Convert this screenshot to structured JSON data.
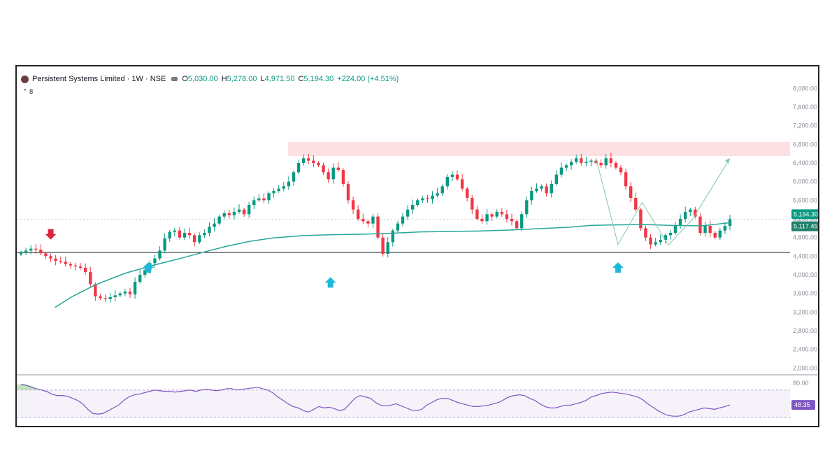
{
  "header": {
    "symbol": "Persistent Systems Limited · 1W · NSE",
    "open_key": "O",
    "open": "5,030.00",
    "high_key": "H",
    "high": "5,278.00",
    "low_key": "L",
    "low": "4,971.50",
    "close_key": "C",
    "close": "5,194.30",
    "change": "+224.00 (+4.51%)",
    "sub_label": "8"
  },
  "colors": {
    "up": "#089981",
    "down": "#f23645",
    "ma": "#26a69a",
    "rsi": "#7e57c2",
    "zone": "#fcd8dc",
    "arrow_up": "#1fb8d9",
    "arrow_down": "#d7263d"
  },
  "chart_data": {
    "type": "candlestick",
    "title": "Persistent Systems Limited · 1W · NSE",
    "y_ticks": [
      "8,000.00",
      "7,600.00",
      "7,200.00",
      "6,800.00",
      "6,400.00",
      "6,000.00",
      "5,600.00",
      "5,200.00",
      "4,800.00",
      "4,400.00",
      "4,000.00",
      "3,600.00",
      "3,200.00",
      "2,800.00",
      "2,400.00",
      "2,000.00"
    ],
    "ylim": [
      1900,
      8200
    ],
    "last_price_label": "5,194.30",
    "ma_value_label": "5,117.45",
    "support_level": 4480,
    "resistance_zone": [
      6550,
      6850
    ],
    "closes": [
      4480,
      4520,
      4560,
      4540,
      4460,
      4400,
      4350,
      4300,
      4280,
      4230,
      4200,
      4180,
      4150,
      4060,
      3800,
      3540,
      3500,
      3480,
      3520,
      3560,
      3600,
      3640,
      3580,
      3850,
      4000,
      4100,
      4250,
      4350,
      4520,
      4780,
      4920,
      4950,
      4800,
      4900,
      4850,
      4700,
      4850,
      4900,
      5030,
      5100,
      5250,
      5320,
      5280,
      5350,
      5400,
      5300,
      5500,
      5600,
      5640,
      5600,
      5750,
      5800,
      5850,
      5900,
      6000,
      6200,
      6400,
      6500,
      6450,
      6400,
      6350,
      6200,
      6050,
      6300,
      6250,
      5950,
      5600,
      5400,
      5200,
      5150,
      5100,
      5250,
      4800,
      4450,
      4700,
      4950,
      5100,
      5250,
      5400,
      5500,
      5600,
      5640,
      5620,
      5700,
      5750,
      5900,
      6100,
      6150,
      6050,
      5850,
      5650,
      5400,
      5200,
      5150,
      5300,
      5250,
      5350,
      5300,
      5200,
      5150,
      5000,
      5300,
      5600,
      5800,
      5850,
      5900,
      5750,
      5950,
      6150,
      6300,
      6350,
      6420,
      6500,
      6400,
      6420,
      6450,
      6400,
      6350,
      6500,
      6400,
      6300,
      6200,
      5900,
      5650,
      5400,
      5000,
      4800,
      4650,
      4700,
      4750,
      4850,
      4900,
      5050,
      5200,
      5350,
      5400,
      5250,
      4900,
      5050,
      4900,
      4800,
      4950,
      5050,
      5194.3
    ],
    "ma_line": [
      [
        23,
        3300
      ],
      [
        35,
        3540
      ],
      [
        50,
        3780
      ],
      [
        70,
        4030
      ],
      [
        90,
        4210
      ],
      [
        110,
        4370
      ],
      [
        125,
        4500
      ],
      [
        140,
        4620
      ],
      [
        155,
        4720
      ],
      [
        170,
        4790
      ],
      [
        190,
        4840
      ],
      [
        210,
        4860
      ],
      [
        230,
        4870
      ],
      [
        250,
        4890
      ],
      [
        270,
        4920
      ],
      [
        290,
        4930
      ],
      [
        310,
        4940
      ],
      [
        330,
        4960
      ],
      [
        350,
        4990
      ],
      [
        370,
        5020
      ],
      [
        385,
        5060
      ],
      [
        400,
        5070
      ],
      [
        420,
        5080
      ],
      [
        440,
        5060
      ],
      [
        460,
        5050
      ],
      [
        479,
        5117.45
      ]
    ],
    "rsi": {
      "top_label": "80.00",
      "value_label": "48.35",
      "upper": 70,
      "lower": 30,
      "ylim": [
        20,
        85
      ],
      "values": [
        78,
        77,
        74,
        72,
        70,
        68,
        64,
        62,
        62,
        61,
        58,
        55,
        50,
        42,
        36,
        35,
        36,
        40,
        44,
        48,
        55,
        60,
        63,
        64,
        66,
        68,
        70,
        69,
        68,
        68,
        67,
        68,
        69,
        70,
        68,
        70,
        71,
        70,
        69,
        70,
        72,
        72,
        70,
        71,
        72,
        73,
        74,
        72,
        70,
        66,
        60,
        55,
        50,
        46,
        44,
        40,
        38,
        42,
        46,
        44,
        45,
        43,
        40,
        42,
        50,
        58,
        62,
        60,
        58,
        52,
        48,
        47,
        48,
        50,
        47,
        44,
        41,
        40,
        42,
        48,
        52,
        56,
        58,
        58,
        55,
        52,
        50,
        48,
        46,
        46,
        47,
        48,
        50,
        52,
        56,
        60,
        62,
        63,
        62,
        58,
        55,
        50,
        46,
        44,
        44,
        46,
        48,
        48,
        50,
        52,
        55,
        60,
        62,
        65,
        66,
        67,
        66,
        65,
        64,
        62,
        60,
        56,
        50,
        45,
        40,
        36,
        33,
        32,
        32,
        34,
        38,
        40,
        42,
        44,
        43,
        42,
        44,
        46,
        48.35
      ]
    },
    "annotations": {
      "down_arrow_index": 6,
      "up_arrow_indices": [
        58,
        141,
        272
      ],
      "path_points": [
        [
          262,
          6500
        ],
        [
          272,
          4650
        ],
        [
          283,
          5550
        ],
        [
          295,
          4640
        ],
        [
          306,
          5194
        ],
        [
          323,
          6500
        ]
      ]
    }
  }
}
